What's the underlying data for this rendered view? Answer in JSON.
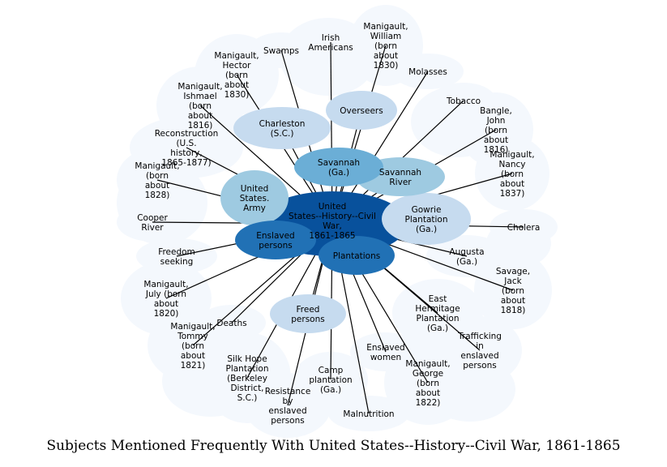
{
  "caption": "Subjects Mentioned Frequently With United States--History--Civil War, 1861-1865",
  "colors": {
    "background_node": "#f4f8fd",
    "light_node": "#c6dbef",
    "mid_node": "#9ecae1",
    "mid2_node": "#6baed6",
    "dark_node": "#2171b5",
    "center_node": "#08519c",
    "edge": "#000000"
  },
  "center": {
    "label": "United States--History--Civil War, 1861-1865"
  },
  "nodes": [
    {
      "id": "swamps",
      "label": "Swamps",
      "shade": "background_node"
    },
    {
      "id": "irish",
      "label": "Irish Americans",
      "shade": "background_node"
    },
    {
      "id": "manigault-william",
      "label": "Manigault, William (born about 1830)",
      "shade": "background_node"
    },
    {
      "id": "molasses",
      "label": "Molasses",
      "shade": "background_node"
    },
    {
      "id": "manigault-hector",
      "label": "Manigault, Hector (born about 1830)",
      "shade": "background_node"
    },
    {
      "id": "tobacco",
      "label": "Tobacco",
      "shade": "background_node"
    },
    {
      "id": "manigault-ishmael",
      "label": "Manigault, Ishmael (born about 1816)",
      "shade": "background_node"
    },
    {
      "id": "bangle-john",
      "label": "Bangle, John (born about 1816)",
      "shade": "background_node"
    },
    {
      "id": "reconstruction",
      "label": "Reconstruction (U.S. history, 1865-1877)",
      "shade": "background_node"
    },
    {
      "id": "manigault-nancy",
      "label": "Manigault, Nancy (born about 1837)",
      "shade": "background_node"
    },
    {
      "id": "born-1828",
      "label": "Manigault, (born about 1828)",
      "shade": "background_node"
    },
    {
      "id": "cooper",
      "label": "Cooper River",
      "shade": "background_node"
    },
    {
      "id": "cholera",
      "label": "Cholera",
      "shade": "background_node"
    },
    {
      "id": "freedom",
      "label": "Freedom seeking",
      "shade": "background_node"
    },
    {
      "id": "manigault-july",
      "label": "Manigault, July (born about 1820)",
      "shade": "background_node"
    },
    {
      "id": "savage-jack",
      "label": "Savage, Jack (born about 1818)",
      "shade": "background_node"
    },
    {
      "id": "deaths",
      "label": "Deaths",
      "shade": "background_node"
    },
    {
      "id": "manigault-tommy",
      "label": "Manigault, Tommy (born about 1821)",
      "shade": "background_node"
    },
    {
      "id": "trafficking",
      "label": "Trafficking in enslaved persons",
      "shade": "background_node"
    },
    {
      "id": "silk-hope",
      "label": "Silk Hope Plantation (Berkeley District, S.C.)",
      "shade": "background_node"
    },
    {
      "id": "camp",
      "label": "Camp plantation (Ga.)",
      "shade": "background_node"
    },
    {
      "id": "manigault-george",
      "label": "Manigault, George (born about 1822)",
      "shade": "background_node"
    },
    {
      "id": "resistance",
      "label": "Resistance by enslaved persons",
      "shade": "background_node"
    },
    {
      "id": "malnutrition",
      "label": "Malnutrition",
      "shade": "background_node"
    },
    {
      "id": "enslaved-women",
      "label": "Enslaved women",
      "shade": "background_node"
    },
    {
      "id": "augusta",
      "label": "Augusta (Ga.)",
      "shade": "background_node"
    },
    {
      "id": "east-hermitage",
      "label": "East Hermitage Plantation (Ga.)",
      "shade": "background_node"
    },
    {
      "id": "charleston",
      "label": "Charleston (S.C.)",
      "shade": "light_node"
    },
    {
      "id": "overseers",
      "label": "Overseers",
      "shade": "light_node"
    },
    {
      "id": "freed",
      "label": "Freed persons",
      "shade": "light_node"
    },
    {
      "id": "gowrie",
      "label": "Gowrie Plantation (Ga.)",
      "shade": "light_node"
    },
    {
      "id": "savannah-river",
      "label": "Savannah River",
      "shade": "mid_node"
    },
    {
      "id": "army",
      "label": "United States. Army",
      "shade": "mid_node"
    },
    {
      "id": "savannah",
      "label": "Savannah (Ga.)",
      "shade": "mid2_node"
    },
    {
      "id": "enslaved",
      "label": "Enslaved persons",
      "shade": "dark_node"
    },
    {
      "id": "plantations",
      "label": "Plantations",
      "shade": "dark_node"
    }
  ],
  "edges": [
    [
      "center",
      "swamps"
    ],
    [
      "center",
      "irish"
    ],
    [
      "center",
      "manigault-william"
    ],
    [
      "center",
      "molasses"
    ],
    [
      "center",
      "manigault-hector"
    ],
    [
      "center",
      "tobacco"
    ],
    [
      "center",
      "bangle-john"
    ],
    [
      "center",
      "reconstruction"
    ],
    [
      "center",
      "manigault-nancy"
    ],
    [
      "center",
      "born-1828"
    ],
    [
      "center",
      "cooper"
    ],
    [
      "center",
      "cholera"
    ],
    [
      "center",
      "freedom"
    ],
    [
      "center",
      "manigault-july"
    ],
    [
      "center",
      "savage-jack"
    ],
    [
      "center",
      "deaths"
    ],
    [
      "center",
      "manigault-tommy"
    ],
    [
      "center",
      "trafficking"
    ],
    [
      "center",
      "silk-hope"
    ],
    [
      "center",
      "camp"
    ],
    [
      "center",
      "manigault-george"
    ],
    [
      "center",
      "resistance"
    ],
    [
      "center",
      "malnutrition"
    ],
    [
      "center",
      "enslaved-women"
    ],
    [
      "center",
      "east-hermitage"
    ],
    [
      "center",
      "charleston"
    ],
    [
      "center",
      "overseers"
    ],
    [
      "center",
      "freed"
    ],
    [
      "center",
      "gowrie"
    ],
    [
      "center",
      "savannah-river"
    ],
    [
      "center",
      "army"
    ],
    [
      "center",
      "savannah"
    ],
    [
      "center",
      "enslaved"
    ],
    [
      "center",
      "plantations"
    ],
    [
      "center",
      "augusta"
    ],
    [
      "center",
      "manigault-ishmael"
    ]
  ]
}
